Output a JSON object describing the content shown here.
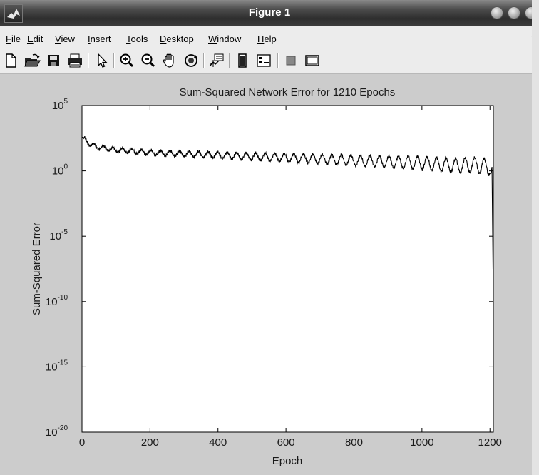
{
  "window": {
    "title": "Figure 1"
  },
  "menu": [
    "File",
    "Edit",
    "View",
    "Insert",
    "Tools",
    "Desktop",
    "Window",
    "Help"
  ],
  "toolbar": [
    "new-figure",
    "open-file",
    "save",
    "print",
    "edit-plot-arrow",
    "zoom-in",
    "zoom-out",
    "pan",
    "rotate-3d",
    "data-cursor",
    "insert-colorbar",
    "insert-legend",
    "hide-plot-tools",
    "show-plot-tools"
  ],
  "chart_data": {
    "type": "line",
    "title": "Sum-Squared Network Error for 1210 Epochs",
    "xlabel": "Epoch",
    "ylabel": "Sum-Squared Error",
    "xlim": [
      0,
      1210
    ],
    "yscale": "log",
    "ylim_exponent": [
      -20,
      5
    ],
    "xticks": [
      0,
      200,
      400,
      600,
      800,
      1000,
      1200
    ],
    "yticks_exponent": [
      -20,
      -15,
      -10,
      -5,
      0,
      5
    ],
    "grid": false,
    "series": [
      {
        "color": "#000000",
        "x": [
          0,
          25,
          50,
          100,
          150,
          200,
          250,
          300,
          350,
          400,
          450,
          500,
          550,
          600,
          650,
          700,
          750,
          800,
          850,
          900,
          950,
          1000,
          1050,
          1100,
          1150,
          1200,
          1203,
          1206,
          1209,
          1210
        ],
        "y_log10": [
          2.6,
          2.0,
          1.8,
          1.6,
          1.5,
          1.4,
          1.35,
          1.3,
          1.25,
          1.2,
          1.15,
          1.1,
          1.05,
          1.0,
          0.95,
          0.9,
          0.85,
          0.8,
          0.75,
          0.7,
          0.65,
          0.6,
          0.5,
          0.4,
          0.45,
          0.3,
          -0.2,
          0.3,
          -7.5,
          0.0
        ]
      }
    ]
  }
}
